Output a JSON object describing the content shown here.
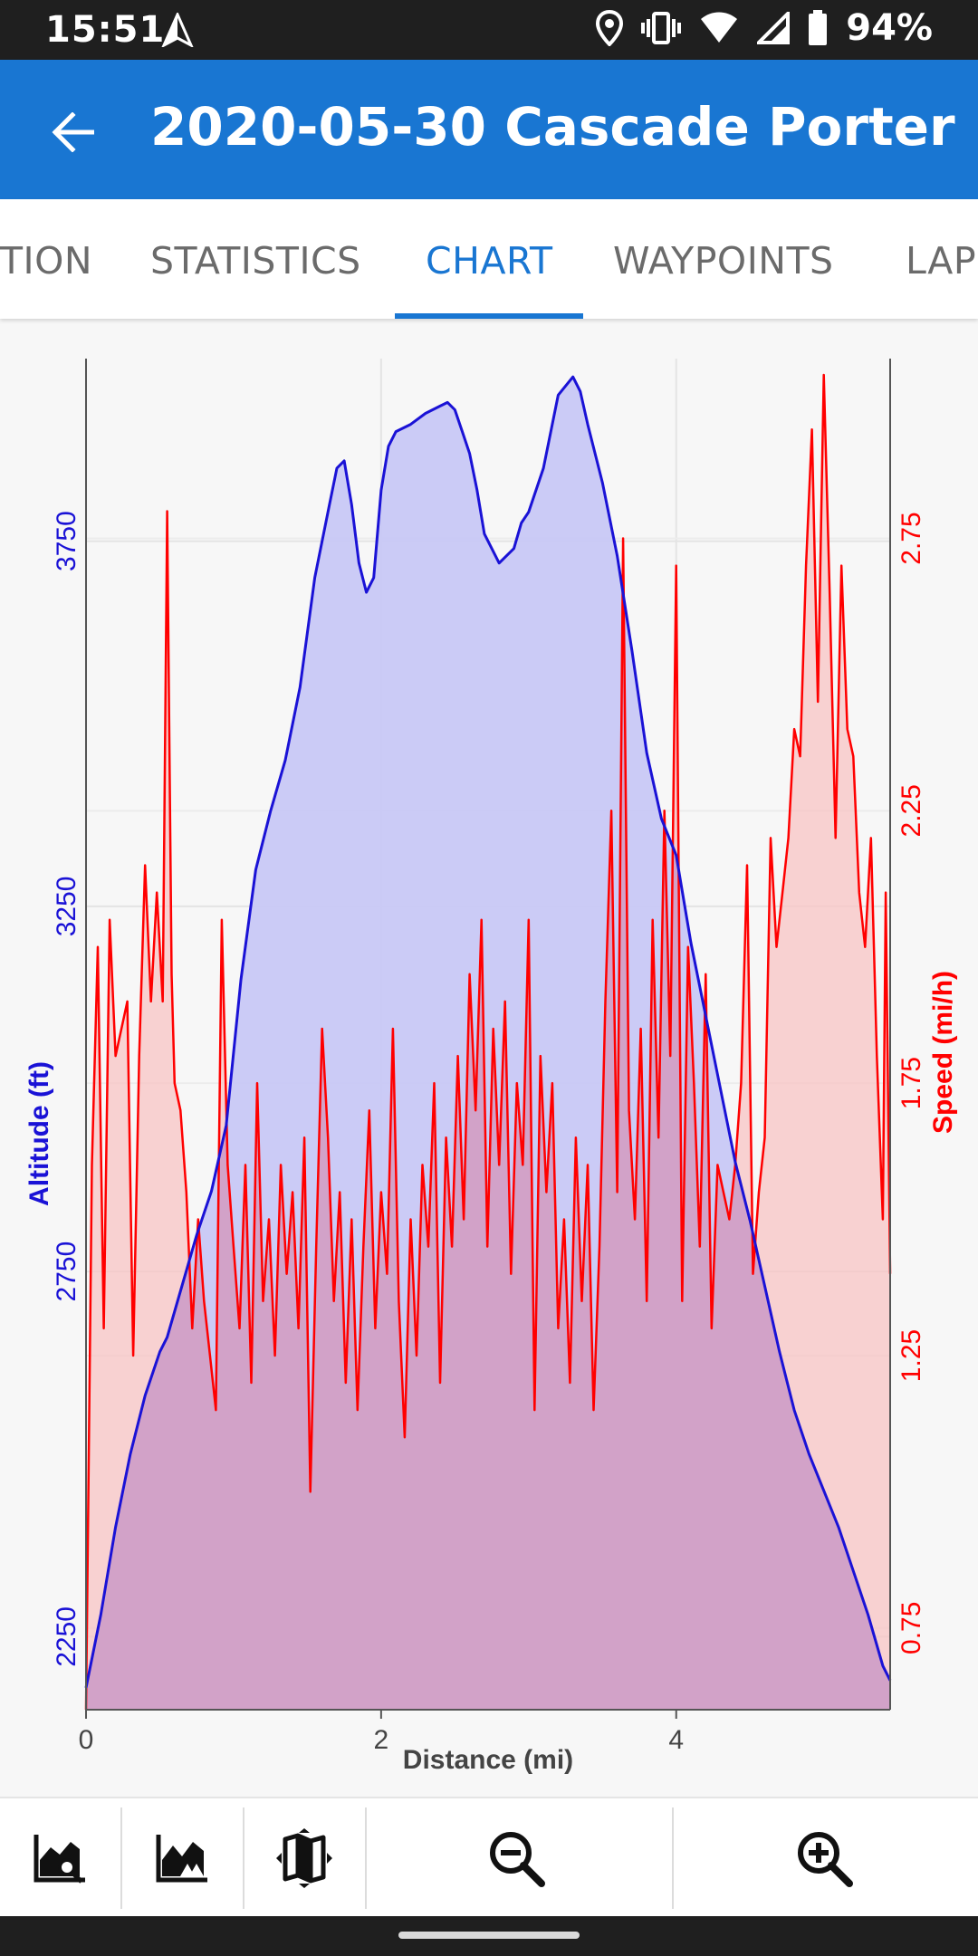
{
  "status_bar": {
    "time": "15:51",
    "battery": "94%",
    "icons": [
      "navigation-icon",
      "location-icon",
      "vibrate-icon",
      "wifi-icon",
      "signal-icon",
      "battery-icon"
    ]
  },
  "app_bar": {
    "title": "2020-05-30 Cascade Porter",
    "back_icon": "arrow-back-icon"
  },
  "tabs": [
    {
      "label": "TION",
      "active": false
    },
    {
      "label": "STATISTICS",
      "active": false
    },
    {
      "label": "CHART",
      "active": true
    },
    {
      "label": "WAYPOINTS",
      "active": false
    },
    {
      "label": "LAP",
      "active": false
    }
  ],
  "colors": {
    "accent": "#1976d2",
    "altitude_line": "#1a12d6",
    "altitude_fill": "#c8c8f6",
    "speed_line": "#ff0000",
    "speed_fill": "#f8c4c4",
    "overlap_fill": "#d2a2c8"
  },
  "chart_data": {
    "type": "area",
    "title": "",
    "xlabel": "Distance (mi)",
    "ylabel_left": "Altitude (ft)",
    "ylabel_right": "Speed (mi/h)",
    "xlim": [
      0,
      5.45
    ],
    "x_ticks": [
      0,
      2,
      4
    ],
    "x_tick_labels": [
      "0",
      "2",
      "4"
    ],
    "y_left_lim": [
      2150,
      4000
    ],
    "y_left_ticks": [
      2250,
      2750,
      3250,
      3750
    ],
    "y_left_tick_labels": [
      "2250",
      "2750",
      "3250",
      "3750"
    ],
    "y_right_lim": [
      0.6,
      3.08
    ],
    "y_right_ticks": [
      0.75,
      1.25,
      1.75,
      2.25,
      2.75
    ],
    "y_right_tick_labels": [
      "0.75",
      "1.25",
      "1.75",
      "2.25",
      "2.75"
    ],
    "grid": true,
    "series": [
      {
        "name": "Altitude (ft)",
        "axis": "left",
        "x": [
          0,
          0.1,
          0.2,
          0.3,
          0.4,
          0.5,
          0.55,
          0.65,
          0.75,
          0.85,
          0.95,
          1.05,
          1.15,
          1.25,
          1.35,
          1.45,
          1.55,
          1.65,
          1.7,
          1.75,
          1.8,
          1.85,
          1.9,
          1.95,
          2.0,
          2.05,
          2.1,
          2.2,
          2.3,
          2.4,
          2.45,
          2.5,
          2.55,
          2.6,
          2.65,
          2.7,
          2.8,
          2.9,
          2.95,
          3.0,
          3.1,
          3.2,
          3.3,
          3.35,
          3.4,
          3.5,
          3.6,
          3.7,
          3.8,
          3.9,
          4.0,
          4.1,
          4.2,
          4.3,
          4.4,
          4.5,
          4.6,
          4.7,
          4.8,
          4.9,
          5.0,
          5.1,
          5.2,
          5.3,
          5.4,
          5.45
        ],
        "values": [
          2180,
          2280,
          2400,
          2500,
          2580,
          2640,
          2660,
          2730,
          2800,
          2860,
          2950,
          3150,
          3300,
          3380,
          3450,
          3550,
          3700,
          3800,
          3850,
          3860,
          3800,
          3720,
          3680,
          3700,
          3820,
          3880,
          3900,
          3910,
          3925,
          3935,
          3940,
          3930,
          3900,
          3870,
          3820,
          3760,
          3720,
          3740,
          3775,
          3790,
          3850,
          3950,
          3975,
          3955,
          3910,
          3830,
          3730,
          3600,
          3460,
          3370,
          3320,
          3200,
          3100,
          3000,
          2900,
          2820,
          2730,
          2640,
          2560,
          2500,
          2450,
          2400,
          2340,
          2280,
          2210,
          2190
        ]
      },
      {
        "name": "Speed (mi/h)",
        "axis": "right",
        "x": [
          0.0,
          0.04,
          0.08,
          0.12,
          0.16,
          0.2,
          0.24,
          0.28,
          0.32,
          0.36,
          0.4,
          0.44,
          0.48,
          0.52,
          0.55,
          0.58,
          0.6,
          0.64,
          0.68,
          0.72,
          0.76,
          0.8,
          0.84,
          0.88,
          0.92,
          0.96,
          1.0,
          1.04,
          1.08,
          1.12,
          1.16,
          1.2,
          1.24,
          1.28,
          1.32,
          1.36,
          1.4,
          1.44,
          1.48,
          1.52,
          1.56,
          1.6,
          1.64,
          1.68,
          1.72,
          1.76,
          1.8,
          1.84,
          1.88,
          1.92,
          1.96,
          2.0,
          2.04,
          2.08,
          2.12,
          2.16,
          2.2,
          2.24,
          2.28,
          2.32,
          2.36,
          2.4,
          2.44,
          2.48,
          2.52,
          2.56,
          2.6,
          2.64,
          2.68,
          2.72,
          2.76,
          2.8,
          2.84,
          2.88,
          2.92,
          2.96,
          3.0,
          3.04,
          3.08,
          3.12,
          3.16,
          3.2,
          3.24,
          3.28,
          3.32,
          3.36,
          3.4,
          3.44,
          3.48,
          3.52,
          3.56,
          3.6,
          3.64,
          3.68,
          3.72,
          3.76,
          3.8,
          3.84,
          3.88,
          3.92,
          3.96,
          4.0,
          4.04,
          4.08,
          4.12,
          4.16,
          4.2,
          4.24,
          4.28,
          4.32,
          4.36,
          4.4,
          4.44,
          4.48,
          4.52,
          4.56,
          4.6,
          4.64,
          4.68,
          4.72,
          4.76,
          4.8,
          4.84,
          4.88,
          4.92,
          4.96,
          5.0,
          5.04,
          5.08,
          5.12,
          5.16,
          5.2,
          5.24,
          5.28,
          5.32,
          5.36,
          5.4,
          5.42,
          5.45
        ],
        "values": [
          0.6,
          1.6,
          2.0,
          1.3,
          2.05,
          1.8,
          1.85,
          1.9,
          1.25,
          1.8,
          2.15,
          1.9,
          2.1,
          1.9,
          2.8,
          1.95,
          1.75,
          1.7,
          1.55,
          1.3,
          1.5,
          1.35,
          1.25,
          1.15,
          2.05,
          1.6,
          1.45,
          1.3,
          1.6,
          1.2,
          1.75,
          1.35,
          1.5,
          1.25,
          1.6,
          1.4,
          1.55,
          1.3,
          1.65,
          1.0,
          1.45,
          1.85,
          1.65,
          1.35,
          1.55,
          1.2,
          1.5,
          1.15,
          1.45,
          1.7,
          1.3,
          1.55,
          1.4,
          1.85,
          1.35,
          1.1,
          1.5,
          1.25,
          1.6,
          1.45,
          1.75,
          1.2,
          1.65,
          1.45,
          1.8,
          1.5,
          1.95,
          1.7,
          2.05,
          1.45,
          1.85,
          1.6,
          1.9,
          1.4,
          1.75,
          1.6,
          2.05,
          1.15,
          1.8,
          1.55,
          1.75,
          1.3,
          1.5,
          1.2,
          1.65,
          1.35,
          1.6,
          1.15,
          1.45,
          1.9,
          2.25,
          1.55,
          2.75,
          1.7,
          1.5,
          1.85,
          1.35,
          2.05,
          1.65,
          2.25,
          1.8,
          2.7,
          1.35,
          2.0,
          1.75,
          1.45,
          1.95,
          1.3,
          1.6,
          1.55,
          1.5,
          1.6,
          1.75,
          2.15,
          1.4,
          1.55,
          1.65,
          2.2,
          2.0,
          2.1,
          2.2,
          2.4,
          2.35,
          2.7,
          2.95,
          2.45,
          3.05,
          2.65,
          2.2,
          2.7,
          2.4,
          2.35,
          2.1,
          2.0,
          2.2,
          1.8,
          1.5,
          2.1,
          1.4
        ]
      }
    ]
  },
  "bottom_bar": [
    {
      "name": "chart-type-altitude-icon",
      "action": "altitude"
    },
    {
      "name": "chart-type-speed-icon",
      "action": "speed"
    },
    {
      "name": "map-icon",
      "action": "map"
    },
    {
      "name": "zoom-out-icon",
      "action": "zoom-out"
    },
    {
      "name": "zoom-in-icon",
      "action": "zoom-in"
    }
  ]
}
